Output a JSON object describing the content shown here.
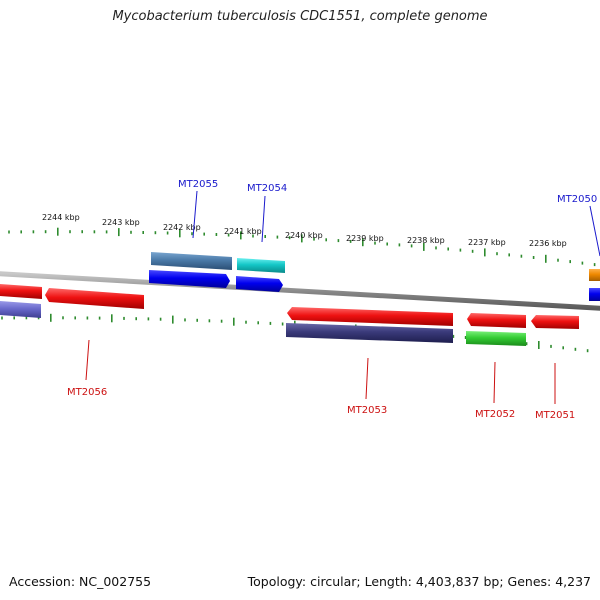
{
  "title": "Mycobacterium tuberculosis CDC1551, complete genome",
  "footer": {
    "accession": "Accession: NC_002755",
    "summary": "Topology: circular; Length: 4,403,837 bp; Genes: 4,237"
  },
  "scale_labels": [
    "2244 kbp",
    "2243 kbp",
    "2242 kbp",
    "2241 kbp",
    "2240 kbp",
    "2239 kbp",
    "2238 kbp",
    "2237 kbp",
    "2236 kbp"
  ],
  "gene_labels": [
    {
      "text": "MT2055",
      "strand": "forward"
    },
    {
      "text": "MT2054",
      "strand": "forward"
    },
    {
      "text": "MT2050",
      "strand": "forward"
    },
    {
      "text": "MT2056",
      "strand": "reverse"
    },
    {
      "text": "MT2053",
      "strand": "reverse"
    },
    {
      "text": "MT2052",
      "strand": "reverse"
    },
    {
      "text": "MT2051",
      "strand": "reverse"
    }
  ],
  "colors": {
    "forward_label": "#1a1acc",
    "reverse_label": "#cc1111",
    "backbone": "#8a8a8a",
    "tick": "#2e8b2e",
    "cds_red": "#ee1111",
    "cds_blue": "#0000ee",
    "cds_steel": "#4a7aa8",
    "cds_cyan": "#14c6c6",
    "cds_navy": "#3a3a7a",
    "cds_green": "#33cc33",
    "cds_orange": "#ee8800",
    "cds_lavender": "#6a6acc"
  }
}
